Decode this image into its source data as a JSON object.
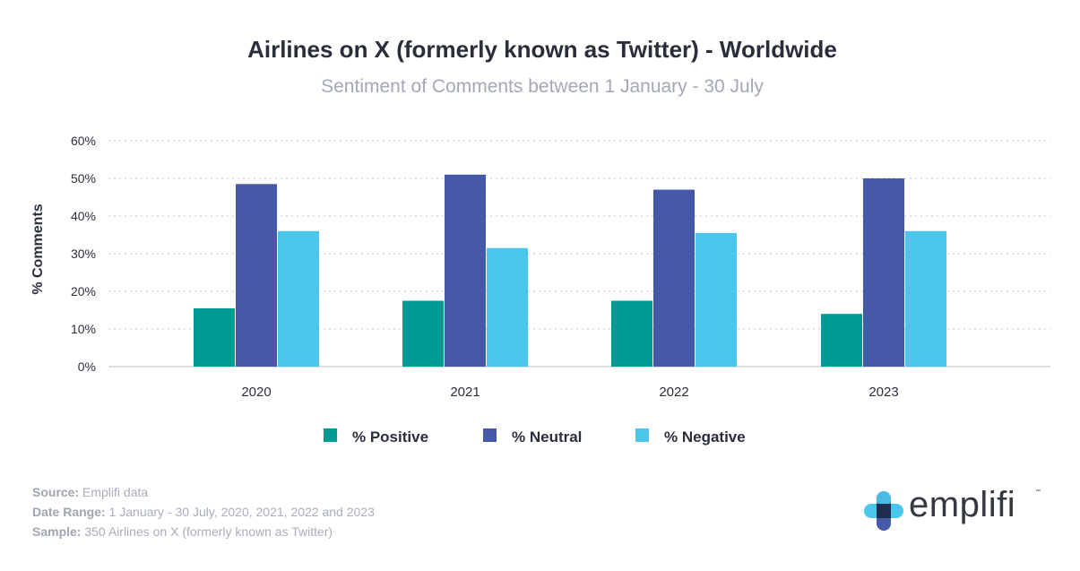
{
  "chart_data": {
    "type": "bar",
    "title": "Airlines on X (formerly known as Twitter) - Worldwide",
    "subtitle": "Sentiment of Comments between 1 January - 30 July",
    "ylabel": "% Comments",
    "xlabel": "",
    "ylim": [
      0,
      60
    ],
    "yticks": [
      "0%",
      "10%",
      "20%",
      "30%",
      "40%",
      "50%",
      "60%"
    ],
    "categories": [
      "2020",
      "2021",
      "2022",
      "2023"
    ],
    "series": [
      {
        "name": "% Positive",
        "color": "#009a94",
        "values": [
          15.5,
          17.5,
          17.5,
          14.0
        ]
      },
      {
        "name": "% Neutral",
        "color": "#4658a8",
        "values": [
          48.5,
          51.0,
          47.0,
          50.0
        ]
      },
      {
        "name": "% Negative",
        "color": "#4ac6ed",
        "values": [
          36.0,
          31.5,
          35.5,
          36.0
        ]
      }
    ],
    "grid": true,
    "legend": "bottom"
  },
  "notes": {
    "source_label": "Source:",
    "source_value": "Emplifi data",
    "range_label": "Date Range:",
    "range_value": "1 January - 30 July, 2020, 2021, 2022 and 2023",
    "sample_label": "Sample:",
    "sample_value": "350 Airlines on X (formerly known as Twitter)"
  },
  "brand": {
    "name": "emplifi",
    "tm": "™"
  }
}
